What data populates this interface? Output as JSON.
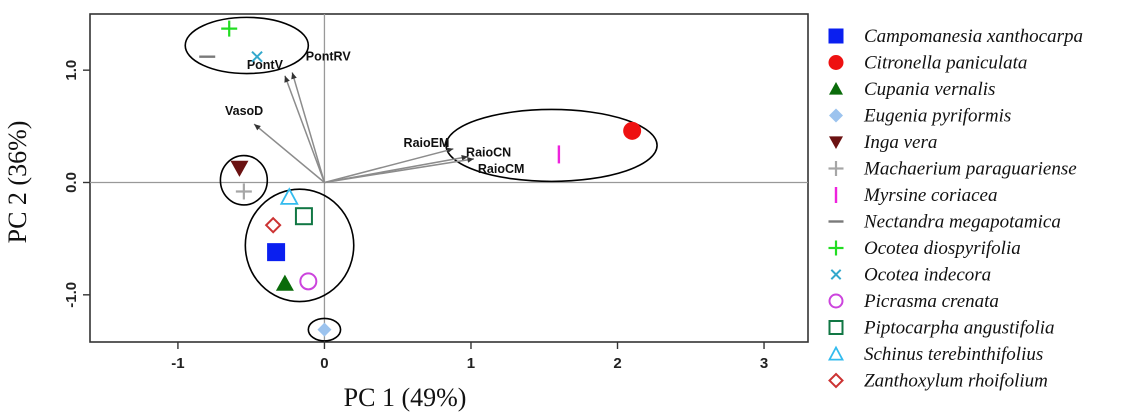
{
  "chart_data": {
    "type": "scatter",
    "title": "",
    "xlabel": "PC 1 (49%)",
    "ylabel": "PC 2 (36%)",
    "xlim": [
      -1.6,
      3.3
    ],
    "ylim": [
      -1.42,
      1.5
    ],
    "xticks": [
      -1,
      0,
      1,
      2,
      3
    ],
    "yticks": [
      -1.0,
      0.0,
      1.0
    ],
    "ytick_labels": [
      "-1.0",
      "0.0",
      "1.0"
    ],
    "reference_lines": {
      "x": 0,
      "y": 0
    },
    "legend_position": "right",
    "series": [
      {
        "name": "Campomanesia xanthocarpa",
        "marker": "filled-square",
        "color": "#0a1ff0",
        "points": [
          [
            -0.33,
            -0.62
          ]
        ]
      },
      {
        "name": "Citronella paniculata",
        "marker": "filled-circle",
        "color": "#ee1111",
        "points": [
          [
            2.1,
            0.46
          ]
        ]
      },
      {
        "name": "Cupania vernalis",
        "marker": "filled-triangle-up",
        "color": "#0a6b0a",
        "points": [
          [
            -0.27,
            -0.9
          ]
        ]
      },
      {
        "name": "Eugenia pyriformis",
        "marker": "filled-diamond",
        "color": "#9cc3ee",
        "points": [
          [
            0.0,
            -1.31
          ]
        ]
      },
      {
        "name": "Inga vera",
        "marker": "filled-triangle-down",
        "color": "#6b1212",
        "points": [
          [
            -0.58,
            0.13
          ]
        ]
      },
      {
        "name": "Machaerium paraguariense",
        "marker": "plus",
        "color": "#a6a6a6",
        "points": [
          [
            -0.55,
            -0.08
          ]
        ]
      },
      {
        "name": "Myrsine coriacea",
        "marker": "vertical-bar",
        "color": "#ee22dd",
        "points": [
          [
            1.6,
            0.25
          ]
        ]
      },
      {
        "name": "Nectandra megapotamica",
        "marker": "horizontal-bar",
        "color": "#7a7a7a",
        "points": [
          [
            -0.8,
            1.12
          ]
        ]
      },
      {
        "name": "Ocotea diospyrifolia",
        "marker": "plus",
        "color": "#22dd22",
        "points": [
          [
            -0.65,
            1.37
          ]
        ]
      },
      {
        "name": "Ocotea indecora",
        "marker": "x",
        "color": "#33a8cc",
        "points": [
          [
            -0.46,
            1.12
          ]
        ]
      },
      {
        "name": "Picrasma crenata",
        "marker": "open-circle",
        "color": "#cc44dd",
        "points": [
          [
            -0.11,
            -0.88
          ]
        ]
      },
      {
        "name": "Piptocarpha angustifolia",
        "marker": "open-square",
        "color": "#117744",
        "points": [
          [
            -0.14,
            -0.3
          ]
        ]
      },
      {
        "name": "Schinus terebinthifolius",
        "marker": "open-triangle-up",
        "color": "#33bbee",
        "points": [
          [
            -0.24,
            -0.13
          ]
        ]
      },
      {
        "name": "Zanthoxylum rhoifolium",
        "marker": "open-diamond",
        "color": "#cc3333",
        "points": [
          [
            -0.35,
            -0.38
          ]
        ]
      }
    ],
    "vectors": [
      {
        "label": "PontV",
        "x": -0.27,
        "y": 0.95
      },
      {
        "label": "PontRV",
        "x": -0.22,
        "y": 0.98
      },
      {
        "label": "VasoD",
        "x": -0.48,
        "y": 0.52
      },
      {
        "label": "RaioEM",
        "x": 0.88,
        "y": 0.3
      },
      {
        "label": "RaioCN",
        "x": 0.98,
        "y": 0.23
      },
      {
        "label": "RaioCM",
        "x": 1.02,
        "y": 0.21
      }
    ],
    "vector_color": "#8c8c8c",
    "groups": [
      {
        "cx": -0.53,
        "cy": 1.22,
        "rx": 0.42,
        "ry": 0.25
      },
      {
        "cx": 1.55,
        "cy": 0.33,
        "rx": 0.72,
        "ry": 0.32
      },
      {
        "cx": -0.55,
        "cy": 0.02,
        "rx": 0.16,
        "ry": 0.22
      },
      {
        "cx": -0.17,
        "cy": -0.56,
        "rx": 0.37,
        "ry": 0.5
      },
      {
        "cx": 0.0,
        "cy": -1.31,
        "rx": 0.11,
        "ry": 0.1
      }
    ]
  }
}
